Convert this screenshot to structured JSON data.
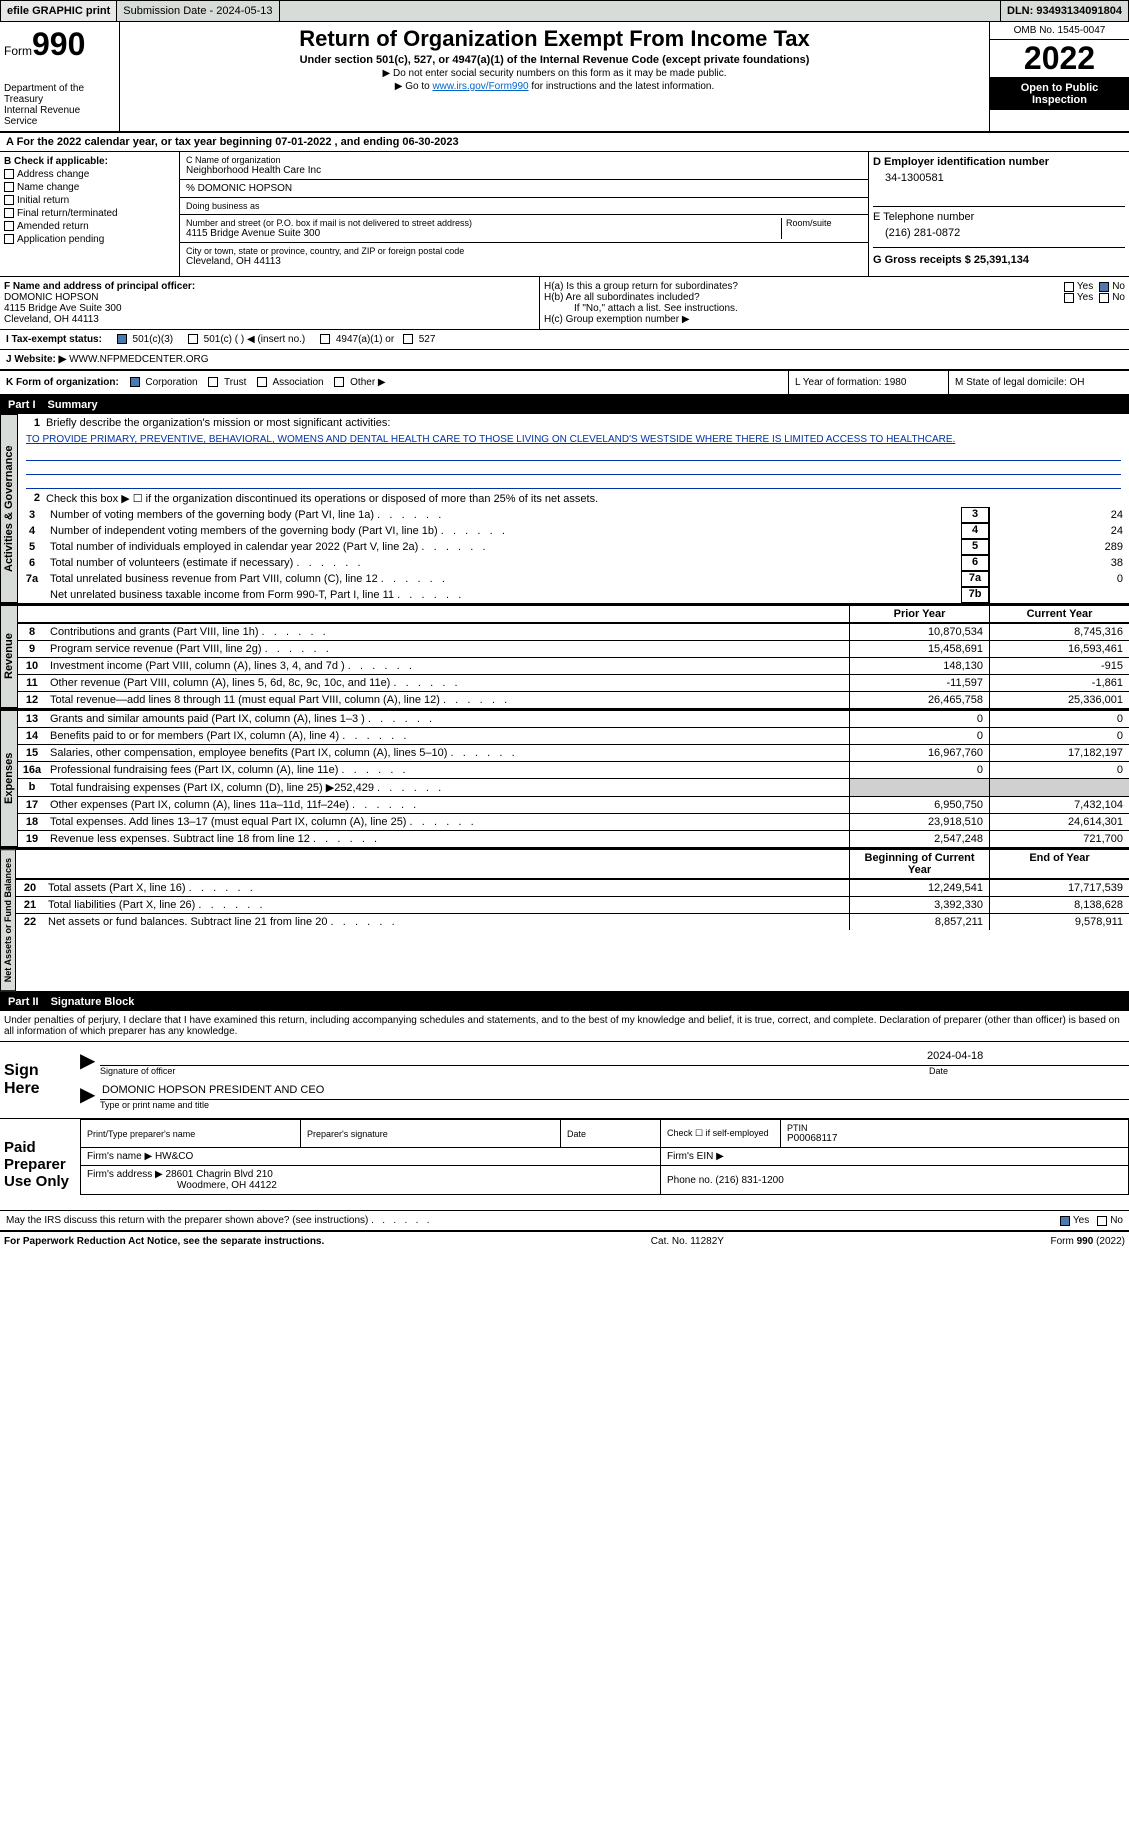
{
  "topbar": {
    "efile": "efile GRAPHIC print",
    "submission_label": "Submission Date - 2024-05-13",
    "dln_label": "DLN: 93493134091804"
  },
  "header": {
    "form_word": "Form",
    "form_num": "990",
    "dept": "Department of the Treasury",
    "irs": "Internal Revenue Service",
    "title": "Return of Organization Exempt From Income Tax",
    "subtitle": "Under section 501(c), 527, or 4947(a)(1) of the Internal Revenue Code (except private foundations)",
    "inst1": "▶ Do not enter social security numbers on this form as it may be made public.",
    "inst2_pre": "▶ Go to ",
    "inst2_link": "www.irs.gov/Form990",
    "inst2_post": " for instructions and the latest information.",
    "omb": "OMB No. 1545-0047",
    "year": "2022",
    "inspection": "Open to Public Inspection"
  },
  "section_a": {
    "text": "A For the 2022 calendar year, or tax year beginning 07-01-2022    , and ending 06-30-2023"
  },
  "section_b": {
    "header": "B Check if applicable:",
    "items": [
      "Address change",
      "Name change",
      "Initial return",
      "Final return/terminated",
      "Amended return",
      "Application pending"
    ]
  },
  "section_c": {
    "name_label": "C Name of organization",
    "name": "Neighborhood Health Care Inc",
    "care_of": "% DOMONIC HOPSON",
    "dba_label": "Doing business as",
    "street_label": "Number and street (or P.O. box if mail is not delivered to street address)",
    "room_label": "Room/suite",
    "street": "4115 Bridge Avenue Suite 300",
    "city_label": "City or town, state or province, country, and ZIP or foreign postal code",
    "city": "Cleveland, OH  44113"
  },
  "section_d": {
    "label": "D Employer identification number",
    "value": "34-1300581"
  },
  "section_e": {
    "label": "E Telephone number",
    "value": "(216) 281-0872"
  },
  "section_g": {
    "label": "G Gross receipts $ 25,391,134"
  },
  "section_f": {
    "label": "F  Name and address of principal officer:",
    "name": "DOMONIC HOPSON",
    "addr1": "4115 Bridge Ave Suite 300",
    "addr2": "Cleveland, OH  44113"
  },
  "section_h": {
    "ha": "H(a)  Is this a group return for subordinates?",
    "hb": "H(b)  Are all subordinates included?",
    "hb_note": "If \"No,\" attach a list. See instructions.",
    "hc": "H(c)  Group exemption number ▶"
  },
  "tax_exempt": {
    "label": "I    Tax-exempt status:",
    "opt1": "501(c)(3)",
    "opt2": "501(c) (  ) ◀ (insert no.)",
    "opt3": "4947(a)(1) or",
    "opt4": "527"
  },
  "website": {
    "label": "J   Website: ▶",
    "value": "  WWW.NFPMEDCENTER.ORG"
  },
  "section_k": {
    "label": "K Form of organization:",
    "opts": [
      "Corporation",
      "Trust",
      "Association",
      "Other ▶"
    ]
  },
  "section_l": {
    "label": "L Year of formation: 1980"
  },
  "section_m": {
    "label": "M State of legal domicile: OH"
  },
  "part1": {
    "label": "Part I",
    "title": "Summary"
  },
  "summary": {
    "line1": "Briefly describe the organization's mission or most significant activities:",
    "mission": "TO PROVIDE PRIMARY, PREVENTIVE, BEHAVIORAL, WOMENS AND DENTAL HEALTH CARE TO THOSE LIVING ON CLEVELAND'S WESTSIDE WHERE THERE IS LIMITED ACCESS TO HEALTHCARE.",
    "line2": "Check this box ▶ ☐  if the organization discontinued its operations or disposed of more than 25% of its net assets.",
    "line3": "Number of voting members of the governing body (Part VI, line 1a)",
    "line4": "Number of independent voting members of the governing body (Part VI, line 1b)",
    "line5": "Total number of individuals employed in calendar year 2022 (Part V, line 2a)",
    "line6": "Total number of volunteers (estimate if necessary)",
    "line7a": "Total unrelated business revenue from Part VIII, column (C), line 12",
    "line7b": "Net unrelated business taxable income from Form 990-T, Part I, line 11",
    "v3": "24",
    "v4": "24",
    "v5": "289",
    "v6": "38",
    "v7a": "0",
    "v7b": "",
    "prior_label": "Prior Year",
    "current_label": "Current Year",
    "rows": [
      {
        "n": "8",
        "d": "Contributions and grants (Part VIII, line 1h)",
        "p": "10,870,534",
        "c": "8,745,316"
      },
      {
        "n": "9",
        "d": "Program service revenue (Part VIII, line 2g)",
        "p": "15,458,691",
        "c": "16,593,461"
      },
      {
        "n": "10",
        "d": "Investment income (Part VIII, column (A), lines 3, 4, and 7d )",
        "p": "148,130",
        "c": "-915"
      },
      {
        "n": "11",
        "d": "Other revenue (Part VIII, column (A), lines 5, 6d, 8c, 9c, 10c, and 11e)",
        "p": "-11,597",
        "c": "-1,861"
      },
      {
        "n": "12",
        "d": "Total revenue—add lines 8 through 11 (must equal Part VIII, column (A), line 12)",
        "p": "26,465,758",
        "c": "25,336,001"
      },
      {
        "n": "13",
        "d": "Grants and similar amounts paid (Part IX, column (A), lines 1–3 )",
        "p": "0",
        "c": "0"
      },
      {
        "n": "14",
        "d": "Benefits paid to or for members (Part IX, column (A), line 4)",
        "p": "0",
        "c": "0"
      },
      {
        "n": "15",
        "d": "Salaries, other compensation, employee benefits (Part IX, column (A), lines 5–10)",
        "p": "16,967,760",
        "c": "17,182,197"
      },
      {
        "n": "16a",
        "d": "Professional fundraising fees (Part IX, column (A), line 11e)",
        "p": "0",
        "c": "0"
      },
      {
        "n": "b",
        "d": "Total fundraising expenses (Part IX, column (D), line 25) ▶252,429",
        "p": "",
        "c": "",
        "shaded": true
      },
      {
        "n": "17",
        "d": "Other expenses (Part IX, column (A), lines 11a–11d, 11f–24e)",
        "p": "6,950,750",
        "c": "7,432,104"
      },
      {
        "n": "18",
        "d": "Total expenses. Add lines 13–17 (must equal Part IX, column (A), line 25)",
        "p": "23,918,510",
        "c": "24,614,301"
      },
      {
        "n": "19",
        "d": "Revenue less expenses. Subtract line 18 from line 12",
        "p": "2,547,248",
        "c": "721,700"
      }
    ],
    "begin_label": "Beginning of Current Year",
    "end_label": "End of Year",
    "net_rows": [
      {
        "n": "20",
        "d": "Total assets (Part X, line 16)",
        "p": "12,249,541",
        "c": "17,717,539"
      },
      {
        "n": "21",
        "d": "Total liabilities (Part X, line 26)",
        "p": "3,392,330",
        "c": "8,138,628"
      },
      {
        "n": "22",
        "d": "Net assets or fund balances. Subtract line 21 from line 20",
        "p": "8,857,211",
        "c": "9,578,911"
      }
    ],
    "vert1": "Activities & Governance",
    "vert2": "Revenue",
    "vert3": "Expenses",
    "vert4": "Net Assets or Fund Balances"
  },
  "part2": {
    "label": "Part II",
    "title": "Signature Block",
    "penalties": "Under penalties of perjury, I declare that I have examined this return, including accompanying schedules and statements, and to the best of my knowledge and belief, it is true, correct, and complete. Declaration of preparer (other than officer) is based on all information of which preparer has any knowledge.",
    "sign_here": "Sign Here",
    "sig_officer": "Signature of officer",
    "sig_date": "2024-04-18",
    "date_label": "Date",
    "officer_name": "DOMONIC HOPSON  PRESIDENT AND CEO",
    "type_name_label": "Type or print name and title",
    "paid_label": "Paid Preparer Use Only",
    "print_name_label": "Print/Type preparer's name",
    "preparer_sig_label": "Preparer's signature",
    "check_self": "Check ☐ if self-employed",
    "ptin_label": "PTIN",
    "ptin": "P00068117",
    "firm_name_label": "Firm's name    ▶",
    "firm_name": "HW&CO",
    "firm_ein_label": "Firm's EIN ▶",
    "firm_addr_label": "Firm's address ▶",
    "firm_addr1": "28601 Chagrin Blvd 210",
    "firm_addr2": "Woodmere, OH  44122",
    "phone_label": "Phone no. (216) 831-1200",
    "may_irs": "May the IRS discuss this return with the preparer shown above? (see instructions)"
  },
  "footer": {
    "paperwork": "For Paperwork Reduction Act Notice, see the separate instructions.",
    "cat": "Cat. No. 11282Y",
    "form": "Form 990 (2022)"
  },
  "labels": {
    "yes": "Yes",
    "no": "No"
  }
}
